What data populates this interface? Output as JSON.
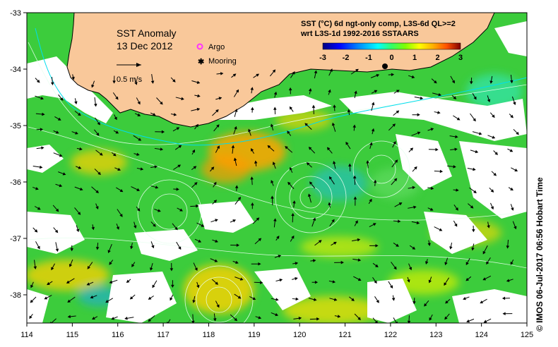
{
  "title": {
    "line1": "SST Anomaly",
    "line2": "13 Dec 2012"
  },
  "scale_arrow_label": "0.5 m/s",
  "legend_items": [
    {
      "symbol": "argo-icon",
      "label": "Argo",
      "color": "#ff33ff"
    },
    {
      "symbol": "mooring-icon",
      "label": "Mooring",
      "color": "#000000"
    }
  ],
  "colorbar": {
    "line1": "SST (°C) 6d ngt-only comp, L3S-6d QL>=2",
    "line2": "wrt L3S-1d 1992-2016 SSTAARS",
    "ticks": [
      "-3",
      "-2",
      "-1",
      "0",
      "1",
      "2",
      "3"
    ],
    "colors": [
      "#000080",
      "#0000ff",
      "#0080ff",
      "#00ffff",
      "#33ff66",
      "#80ff00",
      "#ffff00",
      "#ffb000",
      "#ff5000",
      "#c00000",
      "#600000"
    ]
  },
  "axes": {
    "x_ticks": [
      "114",
      "115",
      "116",
      "117",
      "118",
      "119",
      "120",
      "121",
      "122",
      "123",
      "124",
      "125"
    ],
    "y_ticks": [
      "-33",
      "-34",
      "-35",
      "-36",
      "-37",
      "-38"
    ]
  },
  "colors": {
    "land": "#f9c89a",
    "ocean": "#33cc33",
    "no_data": "#ffffff"
  },
  "credit": "© IMOS 06-Jul-2017 06:56 Hobart Time"
}
